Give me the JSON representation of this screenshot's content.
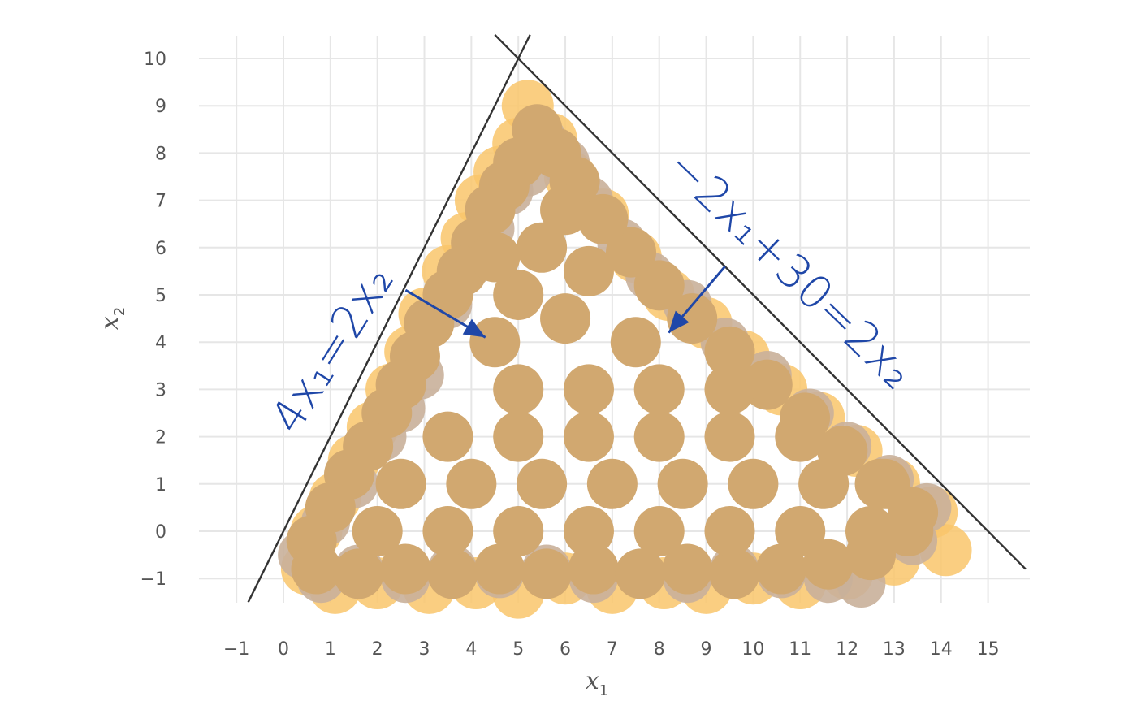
{
  "chart_data": {
    "type": "scatter",
    "title": "",
    "xlabel": {
      "base": "x",
      "sub": "1"
    },
    "ylabel": {
      "base": "x",
      "sub": "2"
    },
    "xlim": [
      -1.3,
      15.8
    ],
    "ylim": [
      -1.6,
      10.5
    ],
    "x_ticks": [
      -1,
      0,
      1,
      2,
      3,
      4,
      5,
      6,
      7,
      8,
      9,
      10,
      11,
      12,
      13,
      14,
      15
    ],
    "y_ticks": [
      -1,
      0,
      1,
      2,
      3,
      4,
      5,
      6,
      7,
      8,
      9,
      10
    ],
    "x_tick_labels": [
      "−1",
      "0",
      "1",
      "2",
      "3",
      "4",
      "5",
      "6",
      "7",
      "8",
      "9",
      "10",
      "11",
      "12",
      "13",
      "14",
      "15"
    ],
    "y_tick_labels": [
      "−1",
      "0",
      "1",
      "2",
      "3",
      "4",
      "5",
      "6",
      "7",
      "8",
      "9",
      "10"
    ],
    "grid": true,
    "series": [
      {
        "color": "#f9c56b",
        "points": [
          [
            5.2,
            9.0
          ],
          [
            5.0,
            8.2
          ],
          [
            4.6,
            7.6
          ],
          [
            4.2,
            7.0
          ],
          [
            3.9,
            6.2
          ],
          [
            3.5,
            5.5
          ],
          [
            3.0,
            4.6
          ],
          [
            2.7,
            3.8
          ],
          [
            2.3,
            3.0
          ],
          [
            1.9,
            2.2
          ],
          [
            1.5,
            1.5
          ],
          [
            1.1,
            0.7
          ],
          [
            0.7,
            0.0
          ],
          [
            0.5,
            -0.8
          ],
          [
            1.1,
            -1.2
          ],
          [
            2.0,
            -1.1
          ],
          [
            3.1,
            -1.2
          ],
          [
            4.1,
            -1.1
          ],
          [
            5.0,
            -1.3
          ],
          [
            6.0,
            -1.0
          ],
          [
            7.0,
            -1.2
          ],
          [
            8.1,
            -1.1
          ],
          [
            9.0,
            -1.2
          ],
          [
            10.0,
            -1.0
          ],
          [
            11.0,
            -1.1
          ],
          [
            12.0,
            -0.9
          ],
          [
            13.0,
            -0.6
          ],
          [
            14.1,
            -0.4
          ],
          [
            13.8,
            0.4
          ],
          [
            13.0,
            1.0
          ],
          [
            12.2,
            1.7
          ],
          [
            11.4,
            2.4
          ],
          [
            10.6,
            3.0
          ],
          [
            9.8,
            3.7
          ],
          [
            9.0,
            4.4
          ],
          [
            8.2,
            5.0
          ],
          [
            7.5,
            5.8
          ],
          [
            6.8,
            6.7
          ],
          [
            6.1,
            7.5
          ],
          [
            5.7,
            8.3
          ]
        ]
      },
      {
        "color": "#c9b09a",
        "points": [
          [
            5.5,
            8.3
          ],
          [
            5.2,
            7.6
          ],
          [
            4.8,
            7.2
          ],
          [
            4.4,
            6.4
          ],
          [
            4.0,
            5.7
          ],
          [
            3.5,
            4.8
          ],
          [
            2.9,
            3.3
          ],
          [
            2.5,
            2.6
          ],
          [
            2.1,
            2.0
          ],
          [
            1.5,
            1.0
          ],
          [
            0.9,
            0.2
          ],
          [
            0.4,
            -0.5
          ],
          [
            0.8,
            -1.0
          ],
          [
            1.6,
            -0.8
          ],
          [
            2.6,
            -1.0
          ],
          [
            3.6,
            -0.8
          ],
          [
            4.6,
            -0.9
          ],
          [
            5.6,
            -0.8
          ],
          [
            6.6,
            -1.0
          ],
          [
            7.6,
            -0.9
          ],
          [
            8.6,
            -1.0
          ],
          [
            9.6,
            -0.8
          ],
          [
            10.6,
            -0.9
          ],
          [
            11.6,
            -1.0
          ],
          [
            12.3,
            -1.1
          ],
          [
            13.4,
            -0.2
          ],
          [
            13.7,
            0.5
          ],
          [
            12.9,
            1.1
          ],
          [
            12.0,
            1.8
          ],
          [
            11.2,
            2.5
          ],
          [
            10.3,
            3.3
          ],
          [
            9.4,
            4.0
          ],
          [
            8.6,
            4.8
          ],
          [
            7.8,
            5.4
          ],
          [
            7.2,
            6.1
          ],
          [
            6.5,
            7.0
          ],
          [
            6.0,
            7.8
          ]
        ]
      },
      {
        "color": "#d1a870",
        "points": [
          [
            5.4,
            8.5
          ],
          [
            5.0,
            7.8
          ],
          [
            4.7,
            7.3
          ],
          [
            4.4,
            6.8
          ],
          [
            4.1,
            6.1
          ],
          [
            3.8,
            5.5
          ],
          [
            3.5,
            5.0
          ],
          [
            3.1,
            4.4
          ],
          [
            2.8,
            3.7
          ],
          [
            2.5,
            3.1
          ],
          [
            2.2,
            2.5
          ],
          [
            1.8,
            1.8
          ],
          [
            1.4,
            1.2
          ],
          [
            1.0,
            0.5
          ],
          [
            0.6,
            -0.2
          ],
          [
            0.7,
            -0.8
          ],
          [
            1.6,
            -0.9
          ],
          [
            2.6,
            -0.8
          ],
          [
            3.6,
            -0.9
          ],
          [
            4.6,
            -0.8
          ],
          [
            5.6,
            -0.9
          ],
          [
            6.6,
            -0.8
          ],
          [
            7.6,
            -0.9
          ],
          [
            8.6,
            -0.8
          ],
          [
            9.6,
            -0.9
          ],
          [
            10.6,
            -0.8
          ],
          [
            11.6,
            -0.7
          ],
          [
            12.5,
            -0.5
          ],
          [
            13.3,
            0.0
          ],
          [
            13.4,
            0.4
          ],
          [
            12.7,
            1.0
          ],
          [
            11.9,
            1.7
          ],
          [
            11.1,
            2.4
          ],
          [
            10.3,
            3.1
          ],
          [
            9.5,
            3.8
          ],
          [
            8.7,
            4.5
          ],
          [
            8.0,
            5.2
          ],
          [
            7.4,
            5.9
          ],
          [
            6.8,
            6.6
          ],
          [
            6.2,
            7.4
          ],
          [
            5.8,
            8.0
          ],
          [
            4.5,
            4.0
          ],
          [
            6.0,
            4.5
          ],
          [
            7.5,
            4.0
          ],
          [
            5.0,
            3.0
          ],
          [
            6.5,
            3.0
          ],
          [
            8.0,
            3.0
          ],
          [
            9.5,
            3.0
          ],
          [
            3.5,
            2.0
          ],
          [
            5.0,
            2.0
          ],
          [
            6.5,
            2.0
          ],
          [
            8.0,
            2.0
          ],
          [
            9.5,
            2.0
          ],
          [
            11.0,
            2.0
          ],
          [
            2.5,
            1.0
          ],
          [
            4.0,
            1.0
          ],
          [
            5.5,
            1.0
          ],
          [
            7.0,
            1.0
          ],
          [
            8.5,
            1.0
          ],
          [
            10.0,
            1.0
          ],
          [
            11.5,
            1.0
          ],
          [
            12.8,
            1.0
          ],
          [
            2.0,
            0.0
          ],
          [
            3.5,
            0.0
          ],
          [
            5.0,
            0.0
          ],
          [
            6.5,
            0.0
          ],
          [
            8.0,
            0.0
          ],
          [
            9.5,
            0.0
          ],
          [
            11.0,
            0.0
          ],
          [
            12.5,
            0.0
          ],
          [
            5.5,
            6.0
          ],
          [
            6.5,
            5.5
          ],
          [
            5.0,
            5.0
          ],
          [
            6.0,
            6.8
          ],
          [
            4.5,
            5.8
          ]
        ]
      }
    ],
    "lines": [
      {
        "name": "4x₁=2x₂",
        "from": [
          -0.75,
          -1.5
        ],
        "to": [
          5.25,
          10.5
        ]
      },
      {
        "name": "−2x₁+30=2x₂",
        "from": [
          4.5,
          10.5
        ],
        "to": [
          15.8,
          -0.8
        ]
      }
    ],
    "annotations": [
      {
        "text": "4x₁=2x₂",
        "arrow_from": [
          2.6,
          5.1
        ],
        "arrow_to": [
          4.3,
          4.1
        ]
      },
      {
        "text": "−2x₁+30=2x₂",
        "arrow_from": [
          9.4,
          5.6
        ],
        "arrow_to": [
          8.2,
          4.2
        ]
      }
    ]
  }
}
